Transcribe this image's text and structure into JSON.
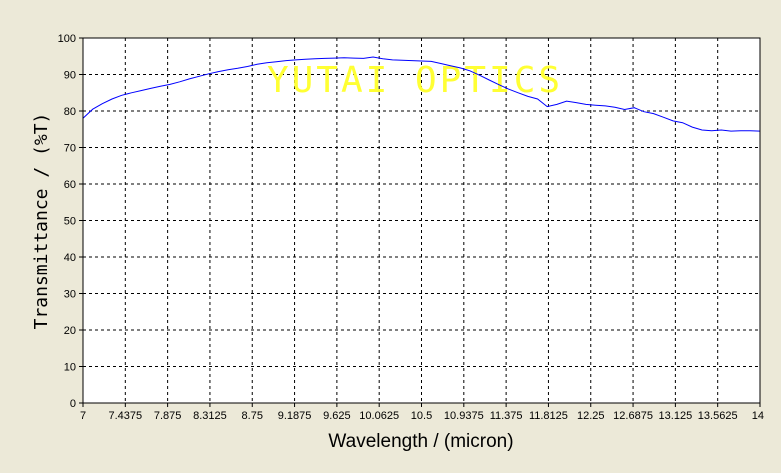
{
  "chart_data": {
    "type": "line",
    "title": "",
    "xlabel": "Wavelength / (micron)",
    "ylabel": "Transmittance / (%T)",
    "xlim": [
      7,
      14
    ],
    "ylim": [
      0,
      100
    ],
    "grid": true,
    "x_ticks": [
      "7",
      "7.4375",
      "7.875",
      "8.3125",
      "8.75",
      "9.1875",
      "9.625",
      "10.0625",
      "10.5",
      "10.9375",
      "11.375",
      "11.8125",
      "12.25",
      "12.6875",
      "13.125",
      "13.5625",
      "14"
    ],
    "y_ticks": [
      "0",
      "10",
      "20",
      "30",
      "40",
      "50",
      "60",
      "70",
      "80",
      "90",
      "100"
    ],
    "watermark": "YUTAI OPTICS",
    "series": [
      {
        "color": "#0000ff",
        "x": [
          7.0,
          7.1,
          7.2,
          7.3,
          7.4,
          7.5,
          7.6,
          7.7,
          7.8,
          7.9,
          8.0,
          8.1,
          8.2,
          8.3,
          8.4,
          8.5,
          8.6,
          8.7,
          8.8,
          8.9,
          9.0,
          9.1,
          9.2,
          9.3,
          9.4,
          9.5,
          9.6,
          9.7,
          9.8,
          9.9,
          10.0,
          10.1,
          10.2,
          10.3,
          10.4,
          10.5,
          10.6,
          10.7,
          10.8,
          10.9,
          11.0,
          11.1,
          11.2,
          11.3,
          11.4,
          11.5,
          11.6,
          11.7,
          11.8,
          11.9,
          12.0,
          12.1,
          12.2,
          12.3,
          12.4,
          12.5,
          12.6,
          12.7,
          12.8,
          12.9,
          13.0,
          13.1,
          13.2,
          13.3,
          13.4,
          13.5,
          13.6,
          13.7,
          13.8,
          13.9,
          14.0
        ],
        "y": [
          78.0,
          80.5,
          82.0,
          83.3,
          84.3,
          85.0,
          85.6,
          86.2,
          86.8,
          87.3,
          88.0,
          88.8,
          89.5,
          90.2,
          90.8,
          91.3,
          91.7,
          92.2,
          92.8,
          93.2,
          93.5,
          93.8,
          94.0,
          94.2,
          94.3,
          94.4,
          94.5,
          94.6,
          94.5,
          94.4,
          94.8,
          94.3,
          94.0,
          93.9,
          93.8,
          93.7,
          93.6,
          93.0,
          92.4,
          91.8,
          91.0,
          89.8,
          88.5,
          87.2,
          86.0,
          85.0,
          84.0,
          83.3,
          81.2,
          81.8,
          82.7,
          82.3,
          81.8,
          81.6,
          81.4,
          81.0,
          80.4,
          80.9,
          79.8,
          79.3,
          78.3,
          77.3,
          76.8,
          75.6,
          74.8,
          74.6,
          74.8,
          74.5,
          74.6,
          74.6,
          74.5
        ]
      }
    ]
  }
}
